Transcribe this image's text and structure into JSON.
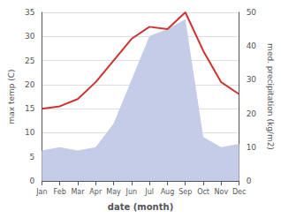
{
  "chart_data": {
    "type": "line",
    "xlabel": "date (month)",
    "ylabel": "max temp (C)",
    "y2label": "med. precipitation (kg/m2)",
    "categories": [
      "Jan",
      "Feb",
      "Mar",
      "Apr",
      "May",
      "Jun",
      "Jul",
      "Aug",
      "Sep",
      "Oct",
      "Nov",
      "Dec"
    ],
    "series": [
      {
        "type": "area",
        "axis": "y2",
        "color": "#c5cce8",
        "values": [
          9,
          10,
          9,
          10,
          17,
          30,
          43,
          45,
          48,
          13,
          10,
          11
        ]
      },
      {
        "type": "line",
        "color": "#cc3333",
        "values": [
          15.0,
          15.5,
          17.0,
          20.5,
          25.0,
          29.5,
          32.0,
          31.5,
          35.0,
          27.0,
          20.5,
          18.0
        ]
      }
    ],
    "ylim": [
      0,
      35
    ],
    "yticks": [
      0,
      5,
      10,
      15,
      20,
      25,
      30,
      35
    ],
    "y2lim": [
      0,
      50
    ],
    "y2ticks": [
      0,
      10,
      20,
      30,
      40,
      50
    ],
    "grid": true
  }
}
